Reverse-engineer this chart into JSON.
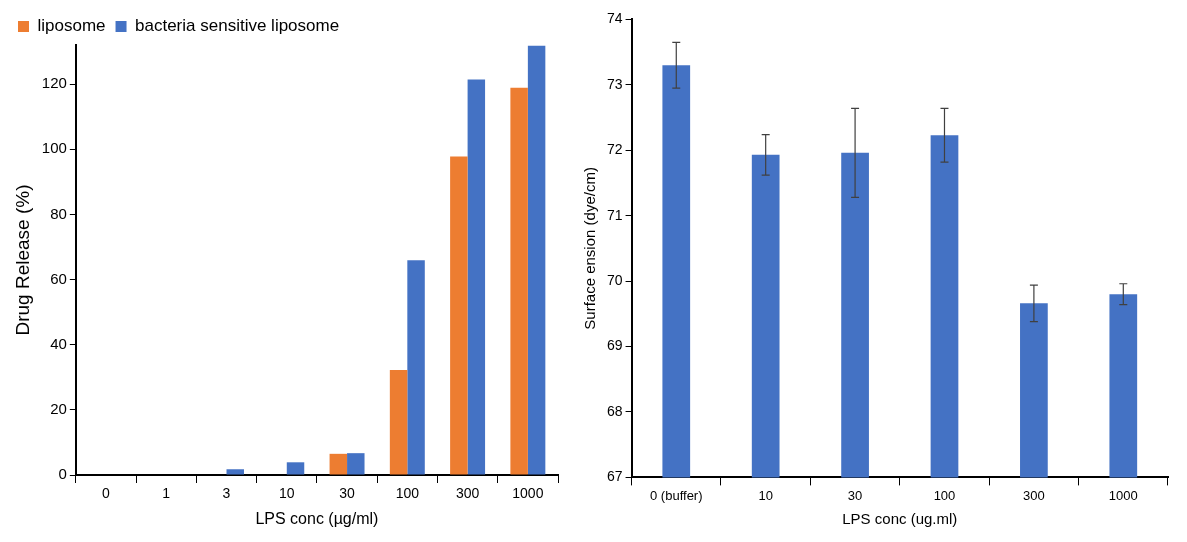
{
  "chart_data": [
    {
      "type": "bar",
      "xlabel": "LPS conc (µg/ml)",
      "ylabel": "Drug Release (%)",
      "categories": [
        "0",
        "1",
        "3",
        "10",
        "30",
        "100",
        "300",
        "1000"
      ],
      "series": [
        {
          "name": "liposome",
          "color": "#ed7d31",
          "values": [
            0,
            0,
            0,
            0,
            6.5,
            32.2,
            97.8,
            118.9
          ]
        },
        {
          "name": "bacteria sensitive liposome",
          "color": "#4472c4",
          "values": [
            0,
            0,
            1.8,
            3.9,
            6.7,
            65.9,
            121.4,
            131.8
          ]
        }
      ],
      "ylim": [
        0,
        132
      ],
      "yticks": [
        0,
        20,
        40,
        60,
        80,
        100,
        120
      ],
      "legend": "top left"
    },
    {
      "type": "bar",
      "xlabel": "LPS conc (ug.ml)",
      "ylabel": "Surface ension (dye/cm)",
      "categories": [
        "0 (buffer)",
        "10",
        "30",
        "100",
        "300",
        "1000"
      ],
      "series": [
        {
          "color": "#4472c4",
          "values": [
            73.3,
            71.93,
            71.96,
            72.23,
            69.66,
            69.8
          ],
          "errors": [
            0.35,
            0.31,
            0.68,
            0.41,
            0.28,
            0.16
          ]
        }
      ],
      "ylim": [
        67,
        74
      ],
      "yticks": [
        67,
        68,
        69,
        70,
        71,
        72,
        73,
        74
      ]
    }
  ]
}
